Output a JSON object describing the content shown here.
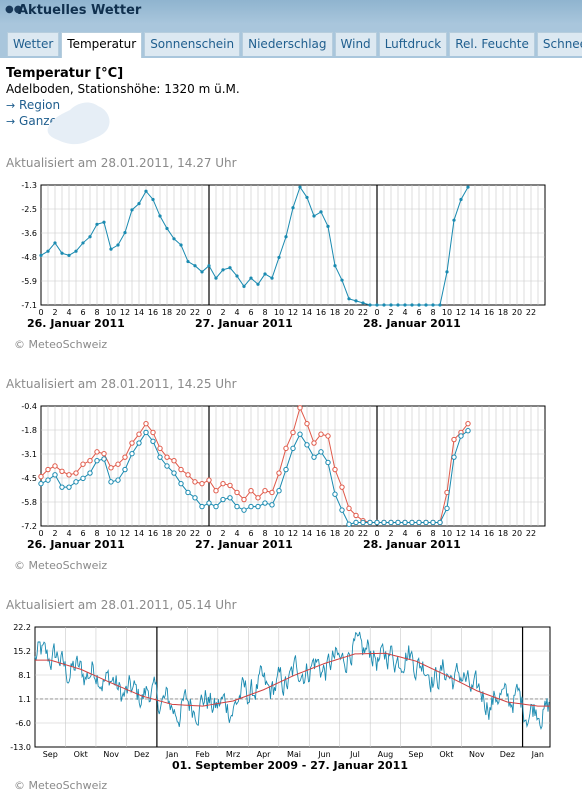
{
  "header": {
    "title": "Aktuelles Wetter"
  },
  "tabs": [
    "Wetter",
    "Temperatur",
    "Sonnenschein",
    "Niederschlag",
    "Wind",
    "Luftdruck",
    "Rel. Feuchte",
    "Schnee"
  ],
  "active_tab": 1,
  "info": {
    "title": "Temperatur [°C]",
    "station": "Adelboden, Stationshöhe: 1320 m ü.M.",
    "link_region": "Region",
    "link_all": "Ganze Schweiz"
  },
  "copyright": "© MeteoSchweiz",
  "chart_data": [
    {
      "type": "line",
      "updated": "Aktualisiert am 28.01.2011, 14.27 Uhr",
      "ylim": [
        -7.1,
        -1.3
      ],
      "yticks": [
        "-1.3",
        "-2.5",
        "-3.6",
        "-4.8",
        "-5.9",
        "-7.1"
      ],
      "hour_labels": [
        "0",
        "2",
        "4",
        "6",
        "8",
        "10",
        "12",
        "14",
        "16",
        "18",
        "20",
        "22"
      ],
      "day_labels": [
        "26. Januar 2011",
        "27. Januar 2011",
        "28. Januar 2011"
      ],
      "grid": true,
      "series": [
        {
          "color": "#1a8ab0",
          "values": [
            -4.7,
            -4.5,
            -4.1,
            -4.6,
            -4.7,
            -4.5,
            -4.1,
            -3.8,
            -3.2,
            -3.1,
            -4.4,
            -4.2,
            -3.6,
            -2.5,
            -2.2,
            -1.6,
            -2.0,
            -2.8,
            -3.4,
            -3.9,
            -4.2,
            -5.0,
            -5.2,
            -5.5,
            -5.2,
            -5.8,
            -5.4,
            -5.3,
            -5.7,
            -6.2,
            -5.8,
            -6.1,
            -5.6,
            -5.8,
            -4.8,
            -3.8,
            -2.4,
            -1.4,
            -1.9,
            -2.8,
            -2.6,
            -3.3,
            -5.2,
            -5.9,
            -6.8,
            -6.9,
            -7.0,
            -7.1,
            -7.1,
            -7.1,
            -7.1,
            -7.1,
            -7.1,
            -7.1,
            -7.1,
            -7.1,
            -7.1,
            -7.1,
            -5.5,
            -3.0,
            -2.0,
            -1.4
          ]
        }
      ]
    },
    {
      "type": "line",
      "updated": "Aktualisiert am 28.01.2011, 14.25 Uhr",
      "ylim": [
        -7.2,
        -0.4
      ],
      "yticks": [
        "-0.4",
        "-1.8",
        "-3.1",
        "-4.5",
        "-5.8",
        "-7.2"
      ],
      "hour_labels": [
        "0",
        "2",
        "4",
        "6",
        "8",
        "10",
        "12",
        "14",
        "16",
        "18",
        "20",
        "22"
      ],
      "day_labels": [
        "26. Januar 2011",
        "27. Januar 2011",
        "28. Januar 2011"
      ],
      "grid": true,
      "series": [
        {
          "color": "#e05a4a",
          "values": [
            -4.4,
            -4.0,
            -3.8,
            -4.1,
            -4.3,
            -4.2,
            -3.7,
            -3.5,
            -3.0,
            -3.1,
            -3.9,
            -3.7,
            -3.3,
            -2.5,
            -2.0,
            -1.4,
            -1.9,
            -2.8,
            -3.3,
            -3.5,
            -4.0,
            -4.3,
            -4.7,
            -4.8,
            -4.6,
            -5.2,
            -4.8,
            -4.9,
            -5.3,
            -5.7,
            -5.2,
            -5.6,
            -5.2,
            -5.3,
            -4.2,
            -2.8,
            -1.9,
            -0.5,
            -1.4,
            -2.5,
            -2.0,
            -2.1,
            -4.0,
            -5.0,
            -6.2,
            -6.6,
            -6.9,
            -7.0,
            -7.0,
            -7.0,
            -7.0,
            -7.0,
            -7.0,
            -7.0,
            -7.0,
            -7.0,
            -7.0,
            -7.0,
            -5.3,
            -2.3,
            -1.9,
            -1.4
          ]
        },
        {
          "color": "#1a8ab0",
          "values": [
            -4.8,
            -4.6,
            -4.3,
            -5.0,
            -5.0,
            -4.7,
            -4.5,
            -4.2,
            -3.5,
            -3.4,
            -4.7,
            -4.6,
            -4.0,
            -3.1,
            -2.5,
            -1.9,
            -2.4,
            -3.3,
            -3.8,
            -4.2,
            -4.8,
            -5.3,
            -5.6,
            -6.1,
            -5.9,
            -6.1,
            -5.7,
            -5.6,
            -6.1,
            -6.3,
            -6.1,
            -6.1,
            -5.9,
            -6.0,
            -5.2,
            -4.0,
            -2.8,
            -2.0,
            -2.6,
            -3.3,
            -3.0,
            -3.6,
            -5.4,
            -6.3,
            -7.1,
            -7.0,
            -7.0,
            -7.0,
            -7.0,
            -7.0,
            -7.0,
            -7.0,
            -7.0,
            -7.0,
            -7.0,
            -7.0,
            -7.0,
            -7.0,
            -6.2,
            -3.3,
            -2.1,
            -1.8
          ]
        }
      ]
    },
    {
      "type": "line",
      "updated": "Aktualisiert am 28.01.2011, 05.14 Uhr",
      "ylim": [
        -13.0,
        22.2
      ],
      "yticks": [
        "22.2",
        "15.2",
        "8.1",
        "1.1",
        "-6.0",
        "-13.0"
      ],
      "month_labels": [
        "Sep",
        "Okt",
        "Nov",
        "Dez",
        "Jan",
        "Feb",
        "Mrz",
        "Apr",
        "Mai",
        "Jun",
        "Jul",
        "Aug",
        "Sep",
        "Okt",
        "Nov",
        "Dez",
        "Jan"
      ],
      "period": "01. September 2009 - 27. Januar 2011",
      "grid": true,
      "reference_line": 1.1,
      "series": [
        {
          "name": "",
          "color": "#1a8ab0",
          "type": "daily"
        },
        {
          "name": "",
          "color": "#d04040",
          "type": "norm",
          "values": [
            12.5,
            9.8,
            5.8,
            2.0,
            -0.5,
            -1.0,
            0.5,
            3.8,
            8.0,
            11.5,
            14.3,
            14.5,
            12.2,
            8.0,
            3.5,
            0.2,
            -1.0
          ]
        }
      ]
    }
  ]
}
